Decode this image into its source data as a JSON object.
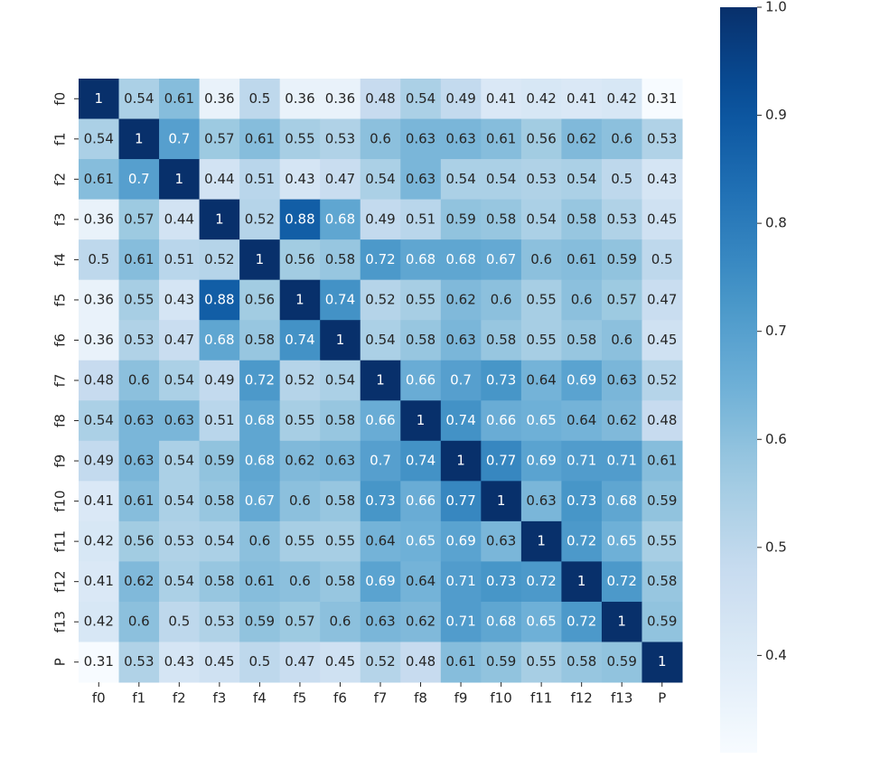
{
  "chart_data": {
    "type": "heatmap",
    "cmap": "Blues",
    "categories": [
      "f0",
      "f1",
      "f2",
      "f3",
      "f4",
      "f5",
      "f6",
      "f7",
      "f8",
      "f9",
      "f10",
      "f11",
      "f12",
      "f13",
      "P"
    ],
    "values": [
      [
        1,
        0.54,
        0.61,
        0.36,
        0.5,
        0.36,
        0.36,
        0.48,
        0.54,
        0.49,
        0.41,
        0.42,
        0.41,
        0.42,
        0.31
      ],
      [
        0.54,
        1,
        0.7,
        0.57,
        0.61,
        0.55,
        0.53,
        0.6,
        0.63,
        0.63,
        0.61,
        0.56,
        0.62,
        0.6,
        0.53
      ],
      [
        0.61,
        0.7,
        1,
        0.44,
        0.51,
        0.43,
        0.47,
        0.54,
        0.63,
        0.54,
        0.54,
        0.53,
        0.54,
        0.5,
        0.43
      ],
      [
        0.36,
        0.57,
        0.44,
        1,
        0.52,
        0.88,
        0.68,
        0.49,
        0.51,
        0.59,
        0.58,
        0.54,
        0.58,
        0.53,
        0.45
      ],
      [
        0.5,
        0.61,
        0.51,
        0.52,
        1,
        0.56,
        0.58,
        0.72,
        0.68,
        0.68,
        0.67,
        0.6,
        0.61,
        0.59,
        0.5
      ],
      [
        0.36,
        0.55,
        0.43,
        0.88,
        0.56,
        1,
        0.74,
        0.52,
        0.55,
        0.62,
        0.6,
        0.55,
        0.6,
        0.57,
        0.47
      ],
      [
        0.36,
        0.53,
        0.47,
        0.68,
        0.58,
        0.74,
        1,
        0.54,
        0.58,
        0.63,
        0.58,
        0.55,
        0.58,
        0.6,
        0.45
      ],
      [
        0.48,
        0.6,
        0.54,
        0.49,
        0.72,
        0.52,
        0.54,
        1,
        0.66,
        0.7,
        0.73,
        0.64,
        0.69,
        0.63,
        0.52
      ],
      [
        0.54,
        0.63,
        0.63,
        0.51,
        0.68,
        0.55,
        0.58,
        0.66,
        1,
        0.74,
        0.66,
        0.65,
        0.64,
        0.62,
        0.48
      ],
      [
        0.49,
        0.63,
        0.54,
        0.59,
        0.68,
        0.62,
        0.63,
        0.7,
        0.74,
        1,
        0.77,
        0.69,
        0.71,
        0.71,
        0.61
      ],
      [
        0.41,
        0.61,
        0.54,
        0.58,
        0.67,
        0.6,
        0.58,
        0.73,
        0.66,
        0.77,
        1,
        0.63,
        0.73,
        0.68,
        0.59
      ],
      [
        0.42,
        0.56,
        0.53,
        0.54,
        0.6,
        0.55,
        0.55,
        0.64,
        0.65,
        0.69,
        0.63,
        1,
        0.72,
        0.65,
        0.55
      ],
      [
        0.41,
        0.62,
        0.54,
        0.58,
        0.61,
        0.6,
        0.58,
        0.69,
        0.64,
        0.71,
        0.73,
        0.72,
        1,
        0.72,
        0.58
      ],
      [
        0.42,
        0.6,
        0.5,
        0.53,
        0.59,
        0.57,
        0.6,
        0.63,
        0.62,
        0.71,
        0.68,
        0.65,
        0.72,
        1,
        0.59
      ],
      [
        0.31,
        0.53,
        0.43,
        0.45,
        0.5,
        0.47,
        0.45,
        0.52,
        0.48,
        0.61,
        0.59,
        0.55,
        0.58,
        0.59,
        1
      ]
    ],
    "clim": [
      0.31,
      1
    ],
    "cticks": [
      0.4,
      0.5,
      0.6,
      0.7,
      0.8,
      0.9,
      {
        "value": 1,
        "label": "1.0"
      }
    ]
  }
}
